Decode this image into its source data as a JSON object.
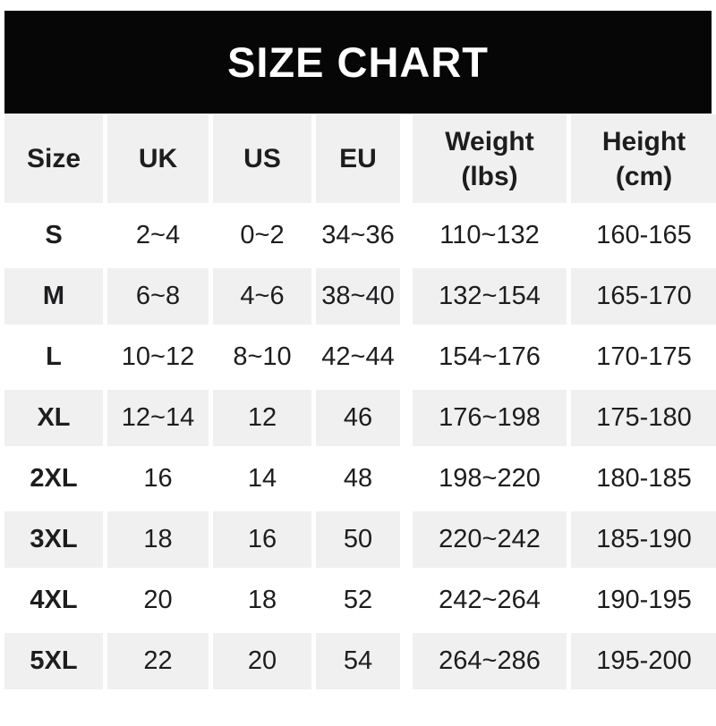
{
  "banner": {
    "title": "SIZE CHART"
  },
  "colors": {
    "banner_bg": "#060606",
    "banner_text": "#ffffff",
    "row_alt_bg": "#f0f0f1",
    "row_bg": "#ffffff",
    "text": "#1d1d1f"
  },
  "chart_data": {
    "type": "table",
    "title": "SIZE CHART",
    "columns": [
      {
        "label": "Size"
      },
      {
        "label": "UK"
      },
      {
        "label": "US"
      },
      {
        "label": "EU"
      },
      {
        "label": "Weight",
        "unit": "(lbs)"
      },
      {
        "label": "Height",
        "unit": "(cm)"
      }
    ],
    "rows": [
      [
        "S",
        "2~4",
        "0~2",
        "34~36",
        "110~132",
        "160-165"
      ],
      [
        "M",
        "6~8",
        "4~6",
        "38~40",
        "132~154",
        "165-170"
      ],
      [
        "L",
        "10~12",
        "8~10",
        "42~44",
        "154~176",
        "170-175"
      ],
      [
        "XL",
        "12~14",
        "12",
        "46",
        "176~198",
        "175-180"
      ],
      [
        "2XL",
        "16",
        "14",
        "48",
        "198~220",
        "180-185"
      ],
      [
        "3XL",
        "18",
        "16",
        "50",
        "220~242",
        "185-190"
      ],
      [
        "4XL",
        "20",
        "18",
        "52",
        "242~264",
        "190-195"
      ],
      [
        "5XL",
        "22",
        "20",
        "54",
        "264~286",
        "195-200"
      ]
    ]
  }
}
